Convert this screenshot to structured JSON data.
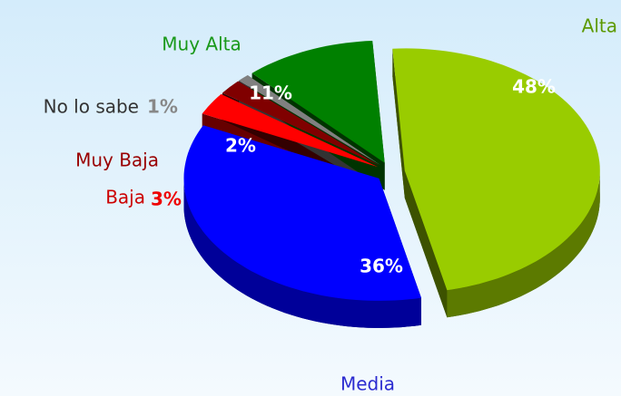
{
  "chart_data": {
    "type": "pie3d",
    "categories": [
      "Alta",
      "Media",
      "Baja",
      "Muy Baja",
      "No lo sabe",
      "Muy Alta"
    ],
    "values": [
      48,
      36,
      3,
      2,
      1,
      11
    ],
    "value_labels": [
      "48%",
      "36%",
      "3%",
      "2%",
      "1%",
      "11%"
    ],
    "colors": [
      "#99cc00",
      "#0000ff",
      "#ff0000",
      "#800000",
      "#808080",
      "#008000"
    ]
  }
}
